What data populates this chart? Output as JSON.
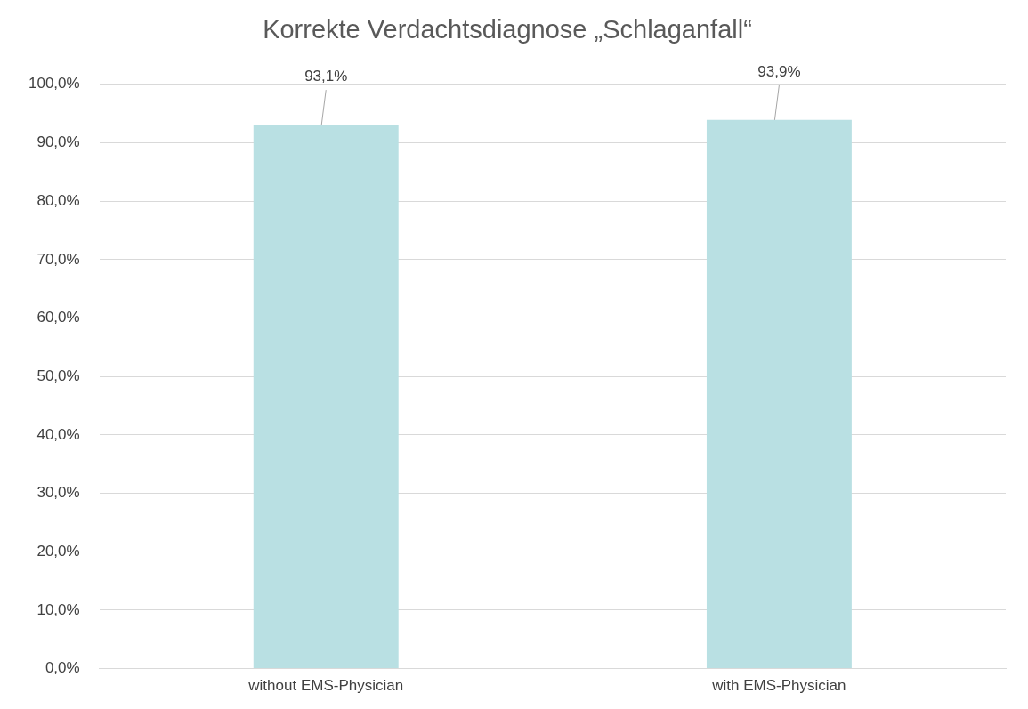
{
  "chart_data": {
    "type": "bar",
    "title": "Korrekte Verdachtsdiagnose „Schlaganfall“",
    "categories": [
      "without EMS-Physician",
      "with EMS-Physician"
    ],
    "values": [
      93.1,
      93.9
    ],
    "color": "#b9e0e3",
    "value_labels": [
      "93,1%",
      "93,9%"
    ],
    "ylim": [
      0,
      100
    ],
    "yticks": [
      {
        "value": 0,
        "label": "0,0%"
      },
      {
        "value": 10,
        "label": "10,0%"
      },
      {
        "value": 20,
        "label": "20,0%"
      },
      {
        "value": 30,
        "label": "30,0%"
      },
      {
        "value": 40,
        "label": "40,0%"
      },
      {
        "value": 50,
        "label": "50,0%"
      },
      {
        "value": 60,
        "label": "60,0%"
      },
      {
        "value": 70,
        "label": "70,0%"
      },
      {
        "value": 80,
        "label": "80,0%"
      },
      {
        "value": 90,
        "label": "90,0%"
      },
      {
        "value": 100,
        "label": "100,0%"
      }
    ],
    "grid": "y",
    "legend": false
  }
}
